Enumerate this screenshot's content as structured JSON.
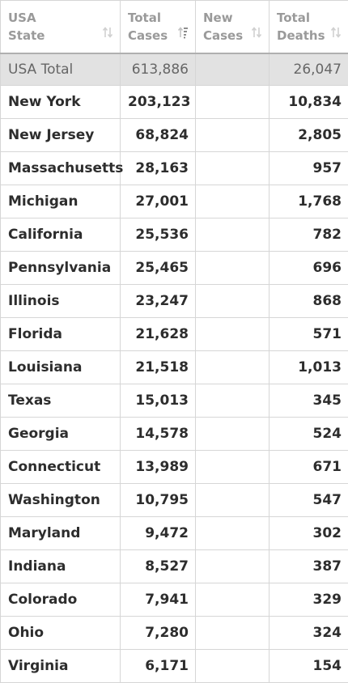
{
  "headers": {
    "state": [
      "USA",
      "State"
    ],
    "total_cases": [
      "Total",
      "Cases"
    ],
    "new_cases": [
      "New",
      "Cases"
    ],
    "total_deaths": [
      "Total",
      "Deaths"
    ]
  },
  "icons": {
    "sort_default": "sort-arrows-icon",
    "sort_active": "sort-descending-icon"
  },
  "total": {
    "name": "USA Total",
    "cases": "613,886",
    "new": "",
    "deaths": "26,047"
  },
  "rows": [
    {
      "name": "New York",
      "cases": "203,123",
      "new": "",
      "deaths": "10,834"
    },
    {
      "name": "New Jersey",
      "cases": "68,824",
      "new": "",
      "deaths": "2,805"
    },
    {
      "name": "Massachusetts",
      "cases": "28,163",
      "new": "",
      "deaths": "957"
    },
    {
      "name": "Michigan",
      "cases": "27,001",
      "new": "",
      "deaths": "1,768"
    },
    {
      "name": "California",
      "cases": "25,536",
      "new": "",
      "deaths": "782"
    },
    {
      "name": "Pennsylvania",
      "cases": "25,465",
      "new": "",
      "deaths": "696"
    },
    {
      "name": "Illinois",
      "cases": "23,247",
      "new": "",
      "deaths": "868"
    },
    {
      "name": "Florida",
      "cases": "21,628",
      "new": "",
      "deaths": "571"
    },
    {
      "name": "Louisiana",
      "cases": "21,518",
      "new": "",
      "deaths": "1,013"
    },
    {
      "name": "Texas",
      "cases": "15,013",
      "new": "",
      "deaths": "345"
    },
    {
      "name": "Georgia",
      "cases": "14,578",
      "new": "",
      "deaths": "524"
    },
    {
      "name": "Connecticut",
      "cases": "13,989",
      "new": "",
      "deaths": "671"
    },
    {
      "name": "Washington",
      "cases": "10,795",
      "new": "",
      "deaths": "547"
    },
    {
      "name": "Maryland",
      "cases": "9,472",
      "new": "",
      "deaths": "302"
    },
    {
      "name": "Indiana",
      "cases": "8,527",
      "new": "",
      "deaths": "387"
    },
    {
      "name": "Colorado",
      "cases": "7,941",
      "new": "",
      "deaths": "329"
    },
    {
      "name": "Ohio",
      "cases": "7,280",
      "new": "",
      "deaths": "324"
    },
    {
      "name": "Virginia",
      "cases": "6,171",
      "new": "",
      "deaths": "154"
    }
  ]
}
